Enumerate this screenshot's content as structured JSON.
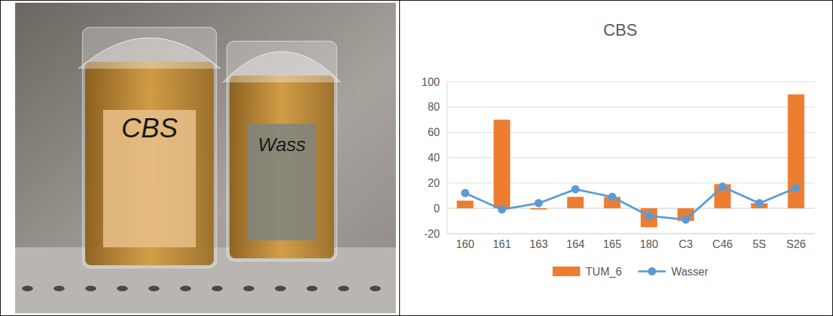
{
  "photo": {
    "labels": [
      "CBS",
      "Wass"
    ]
  },
  "chart_data": {
    "type": "bar",
    "title": "CBS",
    "categories": [
      "160",
      "161",
      "163",
      "164",
      "165",
      "180",
      "C3",
      "C46",
      "5S",
      "S26"
    ],
    "series": [
      {
        "name": "TUM_6",
        "type": "bar",
        "color": "#ed7d31",
        "values": [
          6,
          70,
          -1,
          9,
          9,
          -15,
          -10,
          19,
          4,
          90
        ]
      },
      {
        "name": "Wasser",
        "type": "line",
        "color": "#5b9bd5",
        "marker": "circle",
        "values": [
          12,
          -1,
          4,
          15,
          9,
          -6,
          -9,
          17,
          4,
          16
        ]
      }
    ],
    "ylim": [
      -20,
      100
    ],
    "yticks": [
      -20,
      0,
      20,
      40,
      60,
      80,
      100
    ],
    "grid": true,
    "legend": "bottom"
  }
}
